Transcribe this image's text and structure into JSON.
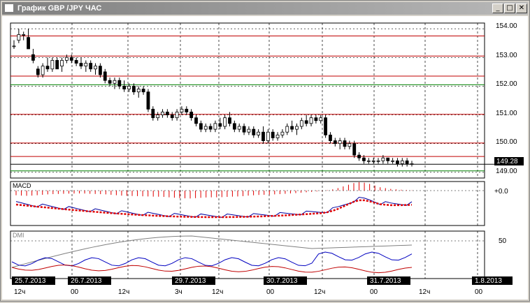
{
  "window": {
    "title": "График GBP /JPY ЧАС",
    "buttons": {
      "minimize": "_",
      "maximize": "□",
      "close": "✕"
    }
  },
  "colors": {
    "resistance": "#c00000",
    "support": "#008000",
    "macd_line": "#0000a0",
    "signal": "#e00000",
    "dmi_plus": "#0000c0",
    "dmi_minus": "#c00000",
    "adx": "#808080"
  },
  "price_axis": {
    "ticks": [
      "154.00",
      "153.00",
      "152.00",
      "151.00",
      "150.00",
      "149.00"
    ],
    "current_price": "149.28"
  },
  "macd_panel": {
    "label": "MACD",
    "zero_label": "+0.0"
  },
  "dmi_panel": {
    "label": "DMI",
    "level_label": "50"
  },
  "time_axis": {
    "date_labels": [
      "25.7.2013",
      "26.7.2013",
      "29.7.2013",
      "30.7.2013",
      "31.7.2013",
      "1.8.2013"
    ],
    "hour_labels": [
      "12ч",
      "00",
      "12ч",
      "3ч",
      "12ч",
      "00",
      "12ч",
      "00",
      "12ч",
      "00"
    ]
  },
  "chart_data": {
    "type": "candlestick",
    "symbol": "GBP/JPY",
    "timeframe": "ЧАС",
    "price_range": [
      148.8,
      154.2
    ],
    "horizontal_levels": {
      "resistance": [
        153.75,
        153.05,
        152.35,
        151.02,
        150.02,
        149.55
      ],
      "support": [
        152.05,
        149.05
      ]
    },
    "candles": [
      [
        153.4,
        153.6,
        153.3,
        153.4
      ],
      [
        153.6,
        154.0,
        153.5,
        153.8
      ],
      [
        153.8,
        153.9,
        153.6,
        153.8
      ],
      [
        153.7,
        154.0,
        153.3,
        153.3
      ],
      [
        153.1,
        153.3,
        152.8,
        152.9
      ],
      [
        152.6,
        152.7,
        152.3,
        152.4
      ],
      [
        152.4,
        152.8,
        152.3,
        152.7
      ],
      [
        152.7,
        153.0,
        152.5,
        152.6
      ],
      [
        152.6,
        153.0,
        152.5,
        152.9
      ],
      [
        152.9,
        153.0,
        152.6,
        152.6
      ],
      [
        152.7,
        153.0,
        152.5,
        152.9
      ],
      [
        152.9,
        153.1,
        152.8,
        153.0
      ],
      [
        153.0,
        153.1,
        152.8,
        152.9
      ],
      [
        152.9,
        153.0,
        152.7,
        152.8
      ],
      [
        152.8,
        153.0,
        152.6,
        152.7
      ],
      [
        152.7,
        152.9,
        152.5,
        152.8
      ],
      [
        152.8,
        152.9,
        152.5,
        152.6
      ],
      [
        152.6,
        152.8,
        152.4,
        152.7
      ],
      [
        152.7,
        152.8,
        152.3,
        152.4
      ],
      [
        152.5,
        152.6,
        152.1,
        152.2
      ],
      [
        152.2,
        152.3,
        152.0,
        152.1
      ],
      [
        152.1,
        152.3,
        151.9,
        152.2
      ],
      [
        152.2,
        152.3,
        151.9,
        152.0
      ],
      [
        152.0,
        152.2,
        151.8,
        151.9
      ],
      [
        151.9,
        152.1,
        151.8,
        152.0
      ],
      [
        152.0,
        152.1,
        151.7,
        151.8
      ],
      [
        151.8,
        152.0,
        151.6,
        151.9
      ],
      [
        151.9,
        152.0,
        151.7,
        151.8
      ],
      [
        151.8,
        151.9,
        151.1,
        151.2
      ],
      [
        151.2,
        151.3,
        150.8,
        150.9
      ],
      [
        150.9,
        151.1,
        150.8,
        151.0
      ],
      [
        151.0,
        151.2,
        150.9,
        151.1
      ],
      [
        151.1,
        151.2,
        150.9,
        151.0
      ],
      [
        151.0,
        151.1,
        150.8,
        150.9
      ],
      [
        150.9,
        151.2,
        150.8,
        151.1
      ],
      [
        151.1,
        151.3,
        151.0,
        151.2
      ],
      [
        151.2,
        151.3,
        151.0,
        151.1
      ],
      [
        151.1,
        151.2,
        150.8,
        150.9
      ],
      [
        150.9,
        151.0,
        150.6,
        150.7
      ],
      [
        150.7,
        150.8,
        150.4,
        150.5
      ],
      [
        150.5,
        150.7,
        150.4,
        150.6
      ],
      [
        150.6,
        150.7,
        150.4,
        150.5
      ],
      [
        150.5,
        150.8,
        150.4,
        150.7
      ],
      [
        150.7,
        150.9,
        150.5,
        150.6
      ],
      [
        150.6,
        151.0,
        150.5,
        150.9
      ],
      [
        150.9,
        151.1,
        150.6,
        150.7
      ],
      [
        150.7,
        150.8,
        150.4,
        150.5
      ],
      [
        150.5,
        150.7,
        150.4,
        150.6
      ],
      [
        150.6,
        150.7,
        150.3,
        150.4
      ],
      [
        150.4,
        150.6,
        150.3,
        150.5
      ],
      [
        150.5,
        150.6,
        150.2,
        150.3
      ],
      [
        150.3,
        150.5,
        150.2,
        150.4
      ],
      [
        150.4,
        150.6,
        150.0,
        150.1
      ],
      [
        150.1,
        150.5,
        150.0,
        150.4
      ],
      [
        150.4,
        150.5,
        150.1,
        150.2
      ],
      [
        150.2,
        150.4,
        150.1,
        150.3
      ],
      [
        150.3,
        150.5,
        150.2,
        150.4
      ],
      [
        150.4,
        150.7,
        150.3,
        150.6
      ],
      [
        150.6,
        150.8,
        150.4,
        150.5
      ],
      [
        150.5,
        150.7,
        150.3,
        150.6
      ],
      [
        150.6,
        150.9,
        150.5,
        150.8
      ],
      [
        150.8,
        151.0,
        150.6,
        150.7
      ],
      [
        150.7,
        151.0,
        150.6,
        150.9
      ],
      [
        150.9,
        151.0,
        150.7,
        150.8
      ],
      [
        150.8,
        151.0,
        150.7,
        150.9
      ],
      [
        150.9,
        151.0,
        150.2,
        150.3
      ],
      [
        150.3,
        150.4,
        150.0,
        150.1
      ],
      [
        150.1,
        150.2,
        149.9,
        150.0
      ],
      [
        150.0,
        150.2,
        149.8,
        150.1
      ],
      [
        150.1,
        150.2,
        149.8,
        149.9
      ],
      [
        149.9,
        150.1,
        149.8,
        150.0
      ],
      [
        150.0,
        150.1,
        149.5,
        149.6
      ],
      [
        149.6,
        149.7,
        149.4,
        149.5
      ],
      [
        149.5,
        149.6,
        149.3,
        149.4
      ],
      [
        149.4,
        149.5,
        149.3,
        149.4
      ],
      [
        149.4,
        149.5,
        149.3,
        149.4
      ],
      [
        149.4,
        149.5,
        149.3,
        149.4
      ],
      [
        149.4,
        149.6,
        149.3,
        149.5
      ],
      [
        149.5,
        149.5,
        149.3,
        149.4
      ],
      [
        149.4,
        149.5,
        149.3,
        149.4
      ],
      [
        149.4,
        149.5,
        149.2,
        149.3
      ],
      [
        149.3,
        149.5,
        149.2,
        149.4
      ],
      [
        149.4,
        149.5,
        149.2,
        149.3
      ],
      [
        149.3,
        149.4,
        149.2,
        149.3
      ]
    ],
    "macd_histogram": [
      -0.55,
      -0.6,
      -0.62,
      -0.6,
      -0.55,
      -0.5,
      -0.45,
      -0.42,
      -0.4,
      -0.38,
      -0.36,
      -0.35,
      -0.34,
      -0.35,
      -0.38,
      -0.4,
      -0.42,
      -0.45,
      -0.5,
      -0.55,
      -0.6,
      -0.62,
      -0.64,
      -0.66,
      -0.68,
      -0.7,
      -0.72,
      -0.73,
      -0.75,
      -0.8,
      -0.85,
      -0.9,
      -0.92,
      -0.94,
      -0.9,
      -0.86,
      -0.82,
      -0.8,
      -0.8,
      -0.78,
      -0.75,
      -0.72,
      -0.7,
      -0.66,
      -0.6,
      -0.56,
      -0.52,
      -0.5,
      -0.48,
      -0.45,
      -0.42,
      -0.38,
      -0.34,
      -0.3,
      -0.25,
      -0.2,
      -0.15,
      -0.1,
      -0.05,
      0.05,
      0.15,
      0.3,
      0.5,
      0.7,
      0.9,
      1.0,
      0.95,
      0.8,
      0.6,
      0.4,
      0.3,
      0.2,
      0.15,
      0.1,
      0.06,
      0.03
    ],
    "dmi": {
      "level": 50
    }
  }
}
